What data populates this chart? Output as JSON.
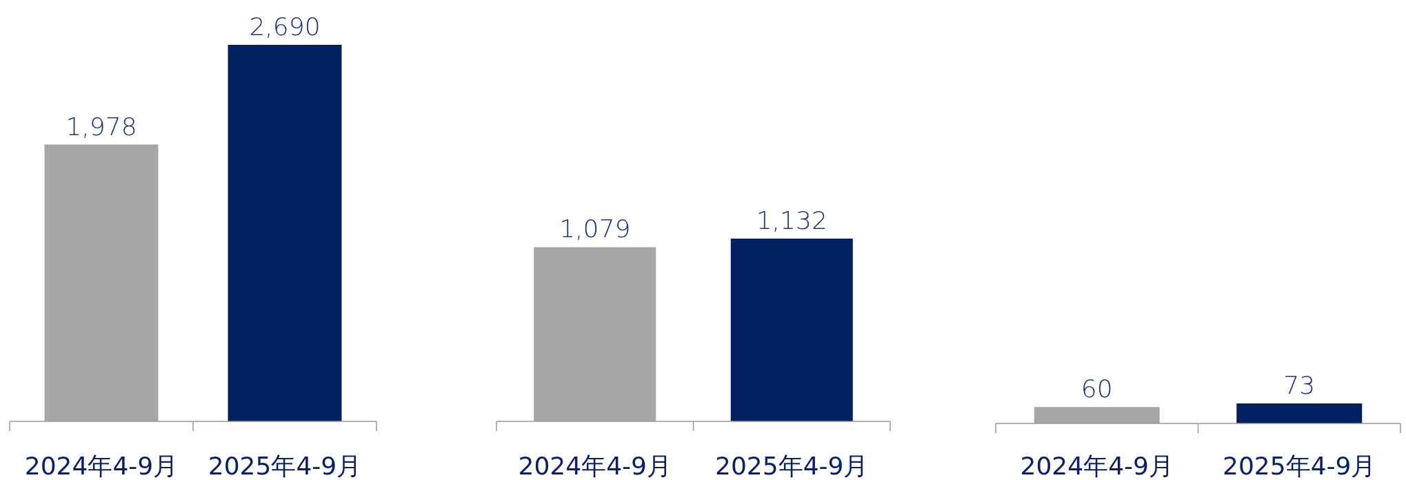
{
  "chart_data": [
    {
      "type": "bar",
      "categories": [
        "2024年4-9月",
        "2025年4-9月"
      ],
      "values": [
        1978,
        2690
      ],
      "colors": [
        "#a6a6a6",
        "#002060"
      ],
      "value_labels": [
        "1,978",
        "2,690"
      ]
    },
    {
      "type": "bar",
      "categories": [
        "2024年4-9月",
        "2025年4-9月"
      ],
      "values": [
        1079,
        1132
      ],
      "colors": [
        "#a6a6a6",
        "#002060"
      ],
      "value_labels": [
        "1,079",
        "1,132"
      ]
    },
    {
      "type": "bar",
      "categories": [
        "2024年4-9月",
        "2025年4-9月"
      ],
      "values": [
        60,
        73
      ],
      "colors": [
        "#a6a6a6",
        "#002060"
      ],
      "value_labels": [
        "60",
        "73"
      ]
    }
  ]
}
